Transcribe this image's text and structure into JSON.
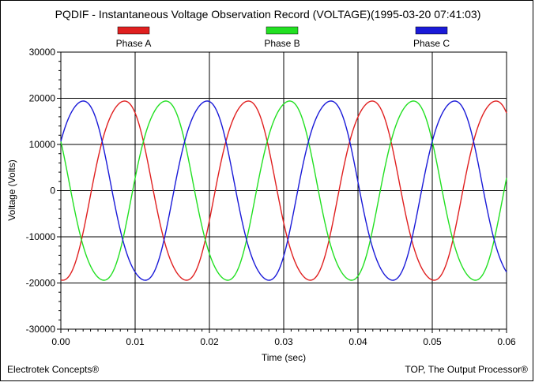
{
  "chart_data": {
    "type": "line",
    "title": "PQDIF - Instantaneous Voltage Observation Record (VOLTAGE)(1995-03-20 07:41:03)",
    "xlabel": "Time (sec)",
    "ylabel": "Voltage (Volts)",
    "xlim": [
      0,
      0.06
    ],
    "ylim": [
      -30000,
      30000
    ],
    "x_ticks": [
      "0.00",
      "0.01",
      "0.02",
      "0.03",
      "0.04",
      "0.05",
      "0.06"
    ],
    "y_ticks": [
      "30000",
      "20000",
      "10000",
      "0",
      "-10000",
      "-20000",
      "-30000"
    ],
    "grid": true,
    "legend_position": "top",
    "frequency_hz": 60,
    "series": [
      {
        "name": "Phase A",
        "color": "#e02020",
        "amplitude": 20000,
        "phase_deg": -90
      },
      {
        "name": "Phase B",
        "color": "#22e022",
        "amplitude": 20000,
        "phase_deg": 150
      },
      {
        "name": "Phase C",
        "color": "#1a1ad8",
        "amplitude": 20000,
        "phase_deg": 30
      }
    ]
  },
  "footer": {
    "left": "Electrotek Concepts®",
    "right": "TOP, The Output Processor®"
  }
}
